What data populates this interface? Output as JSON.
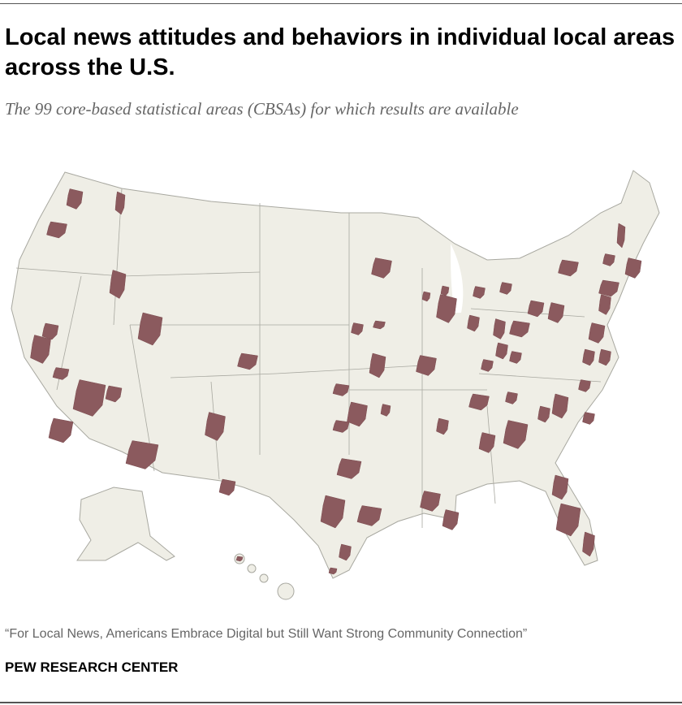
{
  "title": "Local news attitudes and behaviors in individual local areas across the U.S.",
  "subtitle": "The 99 core-based statistical areas (CBSAs) for which results are available",
  "source": "“For Local News, Americans Embrace Digital but Still Want Strong Community Connection”",
  "brand": "PEW RESEARCH CENTER",
  "map": {
    "type": "choropleth",
    "region": "United States (states, Alaska, Hawaii)",
    "highlighted_count": 99,
    "colors": {
      "land": "#efeee6",
      "cbsa": "#8b5a5e",
      "border": "#a8a8a0",
      "water": "#ffffff"
    }
  }
}
